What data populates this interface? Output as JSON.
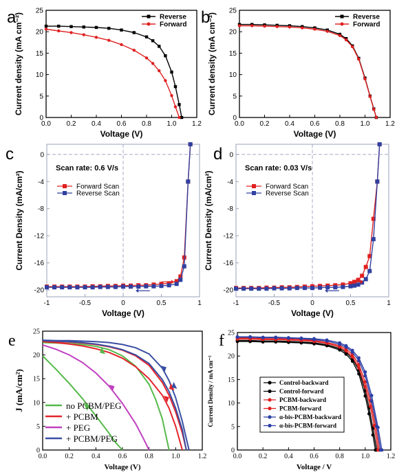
{
  "chart_data": [
    {
      "panel": "a",
      "type": "line",
      "xlabel": "Voltage (V)",
      "ylabel": "Current density (mA cm⁻²)",
      "xlim": [
        0,
        1.2
      ],
      "ylim": [
        0,
        25
      ],
      "xticks": [
        "0.0",
        "0.2",
        "0.4",
        "0.6",
        "0.8",
        "1.0",
        "1.2"
      ],
      "yticks": [
        "0",
        "5",
        "10",
        "15",
        "20",
        "25"
      ],
      "legend": "top-right",
      "grid": false,
      "series": [
        {
          "name": "Reverse",
          "color": "#000000",
          "marker": "square",
          "x": [
            0,
            0.1,
            0.2,
            0.3,
            0.4,
            0.5,
            0.6,
            0.7,
            0.8,
            0.85,
            0.9,
            0.95,
            1.0,
            1.03,
            1.06,
            1.08
          ],
          "y": [
            21.3,
            21.3,
            21.2,
            21.1,
            21.0,
            20.8,
            20.4,
            19.8,
            18.8,
            17.9,
            16.6,
            14.4,
            10.6,
            7.2,
            3.0,
            0.0
          ]
        },
        {
          "name": "Forward",
          "color": "#e02020",
          "marker": "circle",
          "x": [
            0,
            0.1,
            0.2,
            0.3,
            0.4,
            0.5,
            0.6,
            0.7,
            0.8,
            0.85,
            0.9,
            0.95,
            1.0,
            1.03,
            1.06
          ],
          "y": [
            20.6,
            20.2,
            19.8,
            19.3,
            18.7,
            18.0,
            17.0,
            15.7,
            13.9,
            12.6,
            10.9,
            8.6,
            5.1,
            2.5,
            0.0
          ]
        }
      ]
    },
    {
      "panel": "b",
      "type": "line",
      "xlabel": "Voltage (V)",
      "ylabel": "Current density (mA cm⁻²)",
      "xlim": [
        0,
        1.2
      ],
      "ylim": [
        0,
        25
      ],
      "xticks": [
        "0.0",
        "0.2",
        "0.4",
        "0.6",
        "0.8",
        "1.0",
        "1.2"
      ],
      "yticks": [
        "0",
        "5",
        "10",
        "15",
        "20",
        "25"
      ],
      "legend": "top-right",
      "grid": false,
      "series": [
        {
          "name": "Reverse",
          "color": "#000000",
          "marker": "square",
          "x": [
            0,
            0.1,
            0.2,
            0.3,
            0.4,
            0.5,
            0.6,
            0.7,
            0.8,
            0.85,
            0.9,
            0.95,
            1.0,
            1.04,
            1.07,
            1.09
          ],
          "y": [
            21.7,
            21.7,
            21.6,
            21.5,
            21.4,
            21.2,
            20.9,
            20.4,
            19.4,
            18.4,
            16.7,
            13.8,
            9.2,
            5.0,
            2.0,
            0.0
          ]
        },
        {
          "name": "Forward",
          "color": "#e02020",
          "marker": "circle",
          "x": [
            0,
            0.1,
            0.2,
            0.3,
            0.4,
            0.5,
            0.6,
            0.7,
            0.8,
            0.85,
            0.9,
            0.95,
            1.0,
            1.04,
            1.07,
            1.09
          ],
          "y": [
            21.4,
            21.4,
            21.3,
            21.2,
            21.1,
            20.9,
            20.6,
            20.1,
            19.1,
            18.1,
            16.5,
            13.6,
            9.0,
            4.9,
            1.9,
            0.0
          ]
        }
      ]
    },
    {
      "panel": "c",
      "type": "line",
      "xlabel": "Voltage (V)",
      "ylabel": "Current Density (mA/cm²)",
      "annotation": "Scan rate: 0.6 V/s",
      "xlim": [
        -1,
        1
      ],
      "ylim": [
        -21,
        1.5
      ],
      "xticks": [
        "-1",
        "-0.5",
        "0",
        "0.5",
        "1"
      ],
      "yticks": [
        "-20",
        "-16",
        "-12",
        "-8",
        "-4",
        "0"
      ],
      "legend": "upper-left",
      "grid": false,
      "series": [
        {
          "name": "Forward Scan",
          "color": "#e02020",
          "marker": "square",
          "x": [
            -1,
            -0.9,
            -0.8,
            -0.7,
            -0.6,
            -0.5,
            -0.4,
            -0.3,
            -0.2,
            -0.1,
            0,
            0.1,
            0.2,
            0.3,
            0.4,
            0.5,
            0.6,
            0.7,
            0.75,
            0.8,
            0.85,
            0.88
          ],
          "y": [
            -19.5,
            -19.5,
            -19.5,
            -19.5,
            -19.5,
            -19.5,
            -19.45,
            -19.45,
            -19.4,
            -19.4,
            -19.35,
            -19.35,
            -19.3,
            -19.3,
            -19.2,
            -19.1,
            -19.0,
            -18.7,
            -18.0,
            -15.2,
            -4.0,
            1.5
          ]
        },
        {
          "name": "Reverse Scan",
          "color": "#3040a0",
          "marker": "square",
          "x": [
            -1,
            -0.9,
            -0.8,
            -0.7,
            -0.6,
            -0.5,
            -0.4,
            -0.3,
            -0.2,
            -0.1,
            0,
            0.1,
            0.2,
            0.3,
            0.4,
            0.5,
            0.6,
            0.7,
            0.75,
            0.8,
            0.85,
            0.88
          ],
          "y": [
            -19.6,
            -19.6,
            -19.6,
            -19.6,
            -19.6,
            -19.6,
            -19.6,
            -19.55,
            -19.55,
            -19.55,
            -19.5,
            -19.5,
            -19.5,
            -19.45,
            -19.45,
            -19.4,
            -19.3,
            -19.1,
            -18.5,
            -16.5,
            -4.0,
            1.5
          ]
        }
      ]
    },
    {
      "panel": "d",
      "type": "line",
      "xlabel": "Voltage (V)",
      "ylabel": "Current Density (mA/cm²)",
      "annotation": "Scan rate: 0.03 V/s",
      "xlim": [
        -1,
        1
      ],
      "ylim": [
        -21,
        1.5
      ],
      "xticks": [
        "-1",
        "-0.5",
        "0",
        "0.5",
        "1"
      ],
      "yticks": [
        "-20",
        "-16",
        "-12",
        "-8",
        "-4",
        "0"
      ],
      "legend": "upper-left",
      "grid": false,
      "series": [
        {
          "name": "Forward Scan",
          "color": "#e02020",
          "marker": "square",
          "x": [
            -1,
            -0.9,
            -0.8,
            -0.7,
            -0.6,
            -0.5,
            -0.4,
            -0.3,
            -0.2,
            -0.1,
            0,
            0.1,
            0.2,
            0.3,
            0.4,
            0.5,
            0.55,
            0.6,
            0.65,
            0.7,
            0.75,
            0.8,
            0.85,
            0.88
          ],
          "y": [
            -19.7,
            -19.7,
            -19.7,
            -19.7,
            -19.65,
            -19.65,
            -19.6,
            -19.6,
            -19.55,
            -19.5,
            -19.45,
            -19.4,
            -19.35,
            -19.3,
            -19.2,
            -19.0,
            -18.8,
            -18.5,
            -17.9,
            -16.6,
            -15.0,
            -9.5,
            -4.0,
            1.5
          ]
        },
        {
          "name": "Reverse Scan",
          "color": "#3040a0",
          "marker": "square",
          "x": [
            -1,
            -0.9,
            -0.8,
            -0.7,
            -0.6,
            -0.5,
            -0.4,
            -0.3,
            -0.2,
            -0.1,
            0,
            0.1,
            0.2,
            0.3,
            0.4,
            0.5,
            0.55,
            0.6,
            0.65,
            0.7,
            0.75,
            0.8,
            0.85,
            0.88
          ],
          "y": [
            -19.8,
            -19.8,
            -19.8,
            -19.8,
            -19.8,
            -19.75,
            -19.75,
            -19.75,
            -19.7,
            -19.7,
            -19.7,
            -19.65,
            -19.6,
            -19.6,
            -19.55,
            -19.45,
            -19.35,
            -19.2,
            -18.9,
            -18.4,
            -17.2,
            -12.5,
            -4.0,
            1.5
          ]
        }
      ]
    },
    {
      "panel": "e",
      "type": "line",
      "xlabel": "Voltage (V)",
      "ylabel": "J (mA/cm²)",
      "xlim": [
        0,
        1.2
      ],
      "ylim": [
        0,
        25
      ],
      "xticks": [
        "0.0",
        "0.2",
        "0.4",
        "0.6",
        "0.8",
        "1.0",
        "1.2"
      ],
      "yticks": [
        "0",
        "5",
        "10",
        "15",
        "20",
        "25"
      ],
      "legend": "lower-left",
      "grid": false,
      "series": [
        {
          "name": "no PCBM/PEG",
          "color": "#55b94a",
          "x": [
            0,
            0.1,
            0.2,
            0.3,
            0.4,
            0.5,
            0.55,
            0.6
          ],
          "y": [
            19.8,
            17.0,
            14.0,
            10.8,
            7.2,
            3.5,
            1.5,
            0.0
          ],
          "x2": [
            0,
            0.1,
            0.2,
            0.3,
            0.4,
            0.5,
            0.6,
            0.7,
            0.8,
            0.85,
            0.9,
            0.95
          ],
          "y2": [
            22.6,
            22.5,
            22.4,
            22.2,
            21.8,
            21.1,
            19.8,
            17.6,
            13.8,
            10.6,
            6.5,
            0.0
          ]
        },
        {
          "name": "+ PCBM",
          "color": "#e3242b",
          "x": [
            0,
            0.1,
            0.2,
            0.3,
            0.4,
            0.5,
            0.6,
            0.7,
            0.8,
            0.9,
            0.95,
            1.0,
            1.05
          ],
          "y": [
            22.8,
            22.6,
            22.3,
            21.9,
            21.3,
            20.5,
            19.3,
            17.5,
            15.0,
            11.5,
            8.8,
            5.0,
            0.0
          ],
          "x2": [
            0,
            0.1,
            0.2,
            0.3,
            0.4,
            0.5,
            0.6,
            0.7,
            0.8,
            0.9,
            0.95,
            1.0,
            1.05,
            1.08
          ],
          "y2": [
            22.9,
            22.8,
            22.7,
            22.5,
            22.2,
            21.7,
            21.0,
            19.8,
            17.8,
            14.2,
            11.5,
            8.0,
            3.6,
            0.0
          ]
        },
        {
          "name": "+ PEG",
          "color": "#c040c0",
          "x": [
            0,
            0.1,
            0.2,
            0.3,
            0.4,
            0.5,
            0.6,
            0.7,
            0.75,
            0.8
          ],
          "y": [
            22.1,
            21.2,
            20.0,
            18.4,
            16.2,
            13.4,
            9.8,
            5.5,
            2.8,
            0.0
          ]
        },
        {
          "name": "+ PCBM/PEG",
          "color": "#3a4fa3",
          "x": [
            0,
            0.1,
            0.2,
            0.3,
            0.4,
            0.5,
            0.6,
            0.7,
            0.8,
            0.9,
            0.95,
            1.0,
            1.05,
            1.08
          ],
          "y": [
            23.0,
            22.9,
            22.8,
            22.6,
            22.3,
            21.8,
            21.1,
            20.0,
            18.2,
            14.8,
            12.3,
            8.8,
            4.3,
            0.0
          ],
          "x2": [
            0,
            0.1,
            0.2,
            0.3,
            0.4,
            0.5,
            0.6,
            0.7,
            0.8,
            0.9,
            0.95,
            1.0,
            1.05,
            1.1
          ],
          "y2": [
            23.1,
            23.0,
            23.0,
            22.9,
            22.8,
            22.6,
            22.2,
            21.5,
            20.2,
            17.2,
            14.6,
            11.0,
            6.0,
            0.0
          ]
        }
      ]
    },
    {
      "panel": "f",
      "type": "line",
      "xlabel": "Voltage / V",
      "ylabel": "Current Density / mA cm⁻²",
      "xlim": [
        0,
        1.2
      ],
      "ylim": [
        0,
        25
      ],
      "xticks": [
        "0.0",
        "0.2",
        "0.4",
        "0.6",
        "0.8",
        "1.0",
        "1.2"
      ],
      "yticks": [
        "0",
        "5",
        "10",
        "15",
        "20",
        "25"
      ],
      "legend": "lower-left",
      "grid": false,
      "series": [
        {
          "name": "Control-backward",
          "color": "#000000",
          "marker": "circle",
          "x": [
            0,
            0.1,
            0.2,
            0.3,
            0.4,
            0.5,
            0.6,
            0.7,
            0.8,
            0.85,
            0.9,
            0.95,
            1.0,
            1.03,
            1.06,
            1.08
          ],
          "y": [
            23.1,
            23.1,
            23.0,
            23.0,
            22.9,
            22.8,
            22.6,
            22.2,
            21.3,
            20.4,
            18.9,
            16.2,
            11.5,
            7.7,
            3.2,
            0.0
          ]
        },
        {
          "name": "Control-forward",
          "color": "#000000",
          "marker": "circle",
          "x": [
            0,
            0.1,
            0.2,
            0.3,
            0.4,
            0.5,
            0.6,
            0.7,
            0.8,
            0.85,
            0.9,
            0.95,
            1.0,
            1.03,
            1.06,
            1.09
          ],
          "y": [
            23.3,
            23.3,
            23.2,
            23.2,
            23.1,
            23.0,
            22.8,
            22.4,
            21.6,
            20.8,
            19.4,
            17.0,
            12.6,
            9.0,
            4.6,
            0.0
          ]
        },
        {
          "name": "PCBM-backward",
          "color": "#e02020",
          "marker": "circle",
          "x": [
            0,
            0.1,
            0.2,
            0.3,
            0.4,
            0.5,
            0.6,
            0.7,
            0.8,
            0.85,
            0.9,
            0.95,
            1.0,
            1.04,
            1.07,
            1.1
          ],
          "y": [
            23.6,
            23.6,
            23.5,
            23.5,
            23.4,
            23.3,
            23.1,
            22.7,
            21.9,
            21.1,
            19.8,
            17.5,
            13.5,
            9.3,
            5.2,
            0.0
          ]
        },
        {
          "name": "PCBM-forward",
          "color": "#e02020",
          "marker": "circle",
          "x": [
            0,
            0.1,
            0.2,
            0.3,
            0.4,
            0.5,
            0.6,
            0.7,
            0.8,
            0.85,
            0.9,
            0.95,
            1.0,
            1.04,
            1.08,
            1.11
          ],
          "y": [
            23.8,
            23.8,
            23.7,
            23.7,
            23.6,
            23.5,
            23.3,
            22.9,
            22.2,
            21.5,
            20.3,
            18.2,
            14.5,
            10.5,
            5.2,
            0.0
          ]
        },
        {
          "name": "α-bis-PCBM-backward",
          "color": "#2c3fa5",
          "marker": "circle",
          "x": [
            0,
            0.1,
            0.2,
            0.3,
            0.4,
            0.5,
            0.6,
            0.7,
            0.8,
            0.85,
            0.9,
            0.95,
            1.0,
            1.05,
            1.09,
            1.12
          ],
          "y": [
            24.0,
            24.0,
            23.9,
            23.9,
            23.8,
            23.7,
            23.5,
            23.2,
            22.5,
            21.9,
            20.8,
            19.0,
            15.8,
            10.4,
            5.0,
            0.0
          ]
        },
        {
          "name": "α-bis-PCBM-forward",
          "color": "#2c3fa5",
          "marker": "circle",
          "x": [
            0,
            0.1,
            0.2,
            0.3,
            0.4,
            0.5,
            0.6,
            0.7,
            0.8,
            0.85,
            0.9,
            0.95,
            1.0,
            1.05,
            1.1,
            1.13
          ],
          "y": [
            24.1,
            24.1,
            24.0,
            24.0,
            23.9,
            23.8,
            23.7,
            23.4,
            22.8,
            22.2,
            21.2,
            19.6,
            16.6,
            11.6,
            4.8,
            0.0
          ]
        }
      ]
    }
  ]
}
